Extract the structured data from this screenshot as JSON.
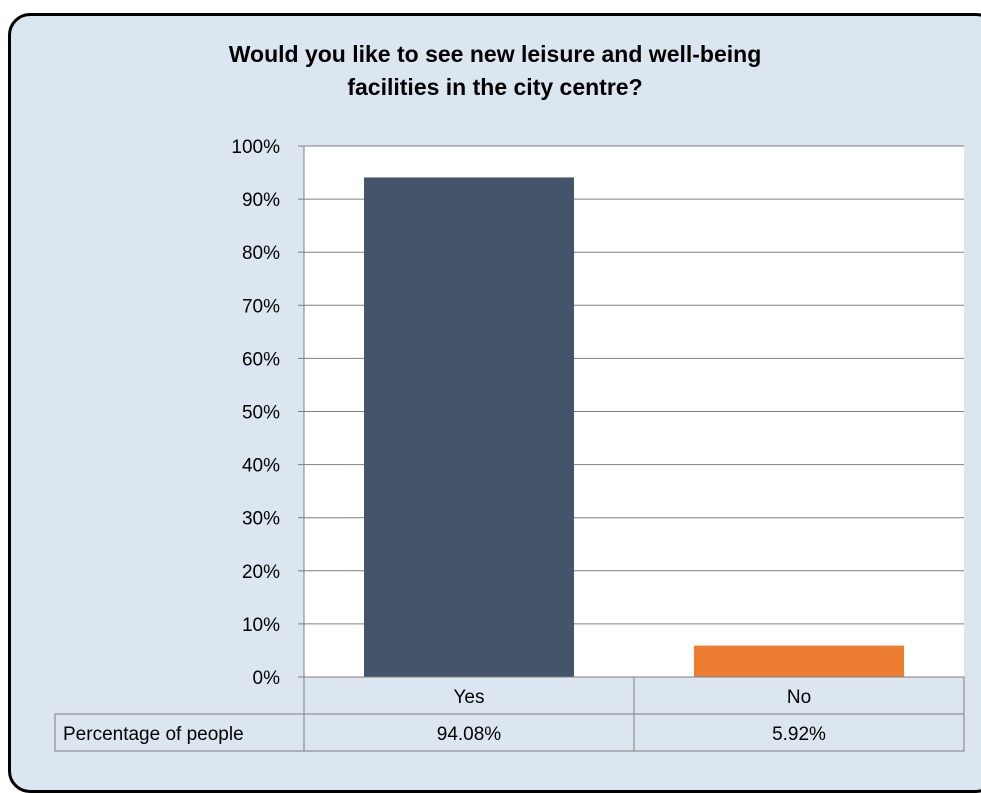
{
  "chart_data": {
    "type": "bar",
    "title_lines": [
      "Would you like to see new leisure and well-being",
      "facilities in the city centre?"
    ],
    "categories": [
      "Yes",
      "No"
    ],
    "series": [
      {
        "name": "Percentage of people",
        "values": [
          94.08,
          5.92
        ],
        "value_labels": [
          "94.08%",
          "5.92%"
        ]
      }
    ],
    "bar_colors": [
      "#44546a",
      "#ed7d31"
    ],
    "ylim": [
      0,
      100
    ],
    "yticks": [
      0,
      10,
      20,
      30,
      40,
      50,
      60,
      70,
      80,
      90,
      100
    ],
    "ytick_labels": [
      "0%",
      "10%",
      "20%",
      "30%",
      "40%",
      "50%",
      "60%",
      "70%",
      "80%",
      "90%",
      "100%"
    ],
    "grid": true,
    "data_table": true
  }
}
